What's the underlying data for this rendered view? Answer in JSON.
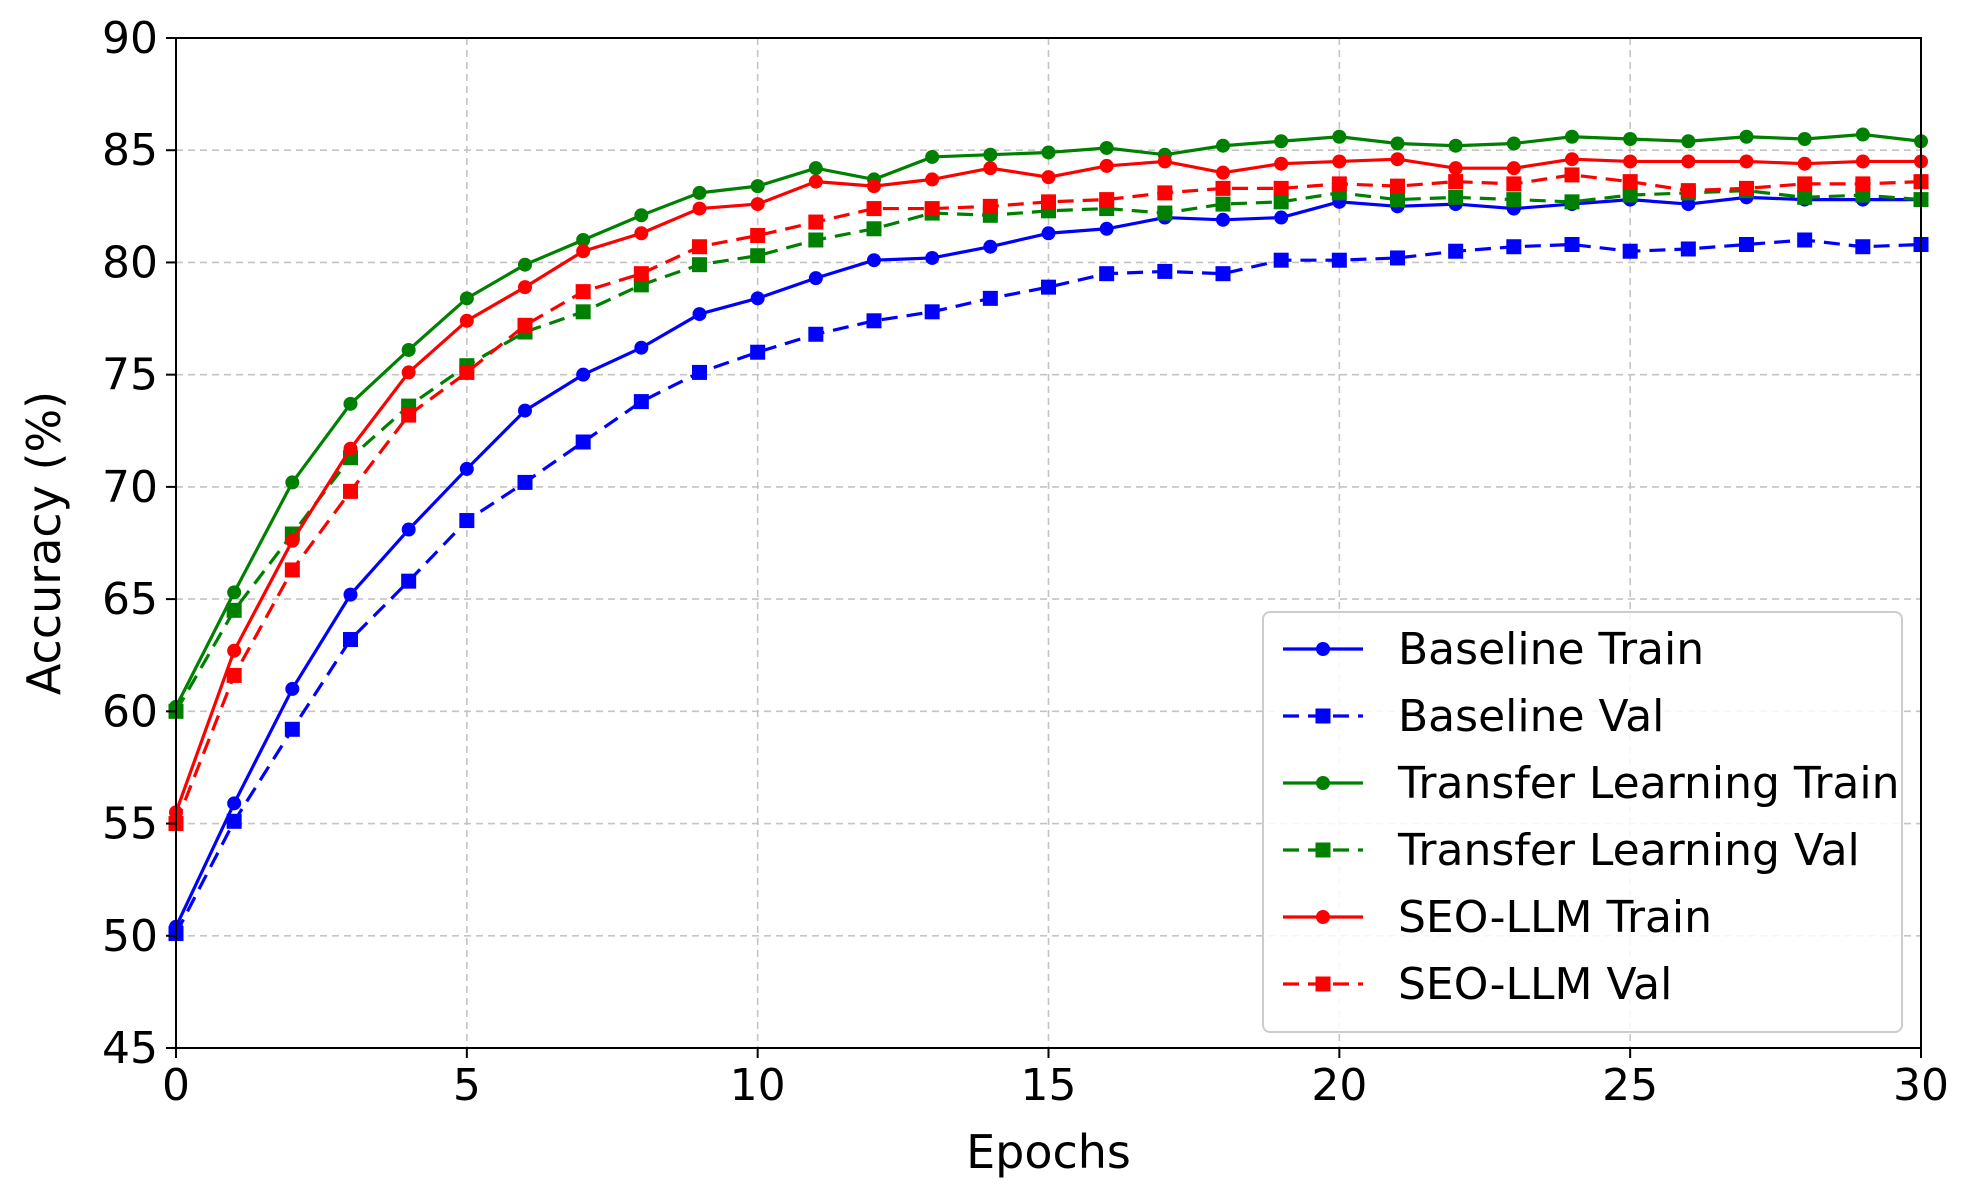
{
  "chart_data": {
    "type": "line",
    "xlabel": "Epochs",
    "ylabel": "Accuracy (%)",
    "xlim": [
      0,
      30
    ],
    "ylim": [
      45,
      90
    ],
    "xticks": [
      0,
      5,
      10,
      15,
      20,
      25,
      30
    ],
    "yticks": [
      45,
      50,
      55,
      60,
      65,
      70,
      75,
      80,
      85,
      90
    ],
    "grid": true,
    "legend_position": "lower-right",
    "x": [
      0,
      1,
      2,
      3,
      4,
      5,
      6,
      7,
      8,
      9,
      10,
      11,
      12,
      13,
      14,
      15,
      16,
      17,
      18,
      19,
      20,
      21,
      22,
      23,
      24,
      25,
      26,
      27,
      28,
      29,
      30
    ],
    "series": [
      {
        "name": "Baseline Train",
        "color": "#0000ff",
        "line_style": "solid",
        "marker": "circle",
        "values": [
          50.4,
          55.9,
          61.0,
          65.2,
          68.1,
          70.8,
          73.4,
          75.0,
          76.2,
          77.7,
          78.4,
          79.3,
          80.1,
          80.2,
          80.7,
          81.3,
          81.5,
          82.0,
          81.9,
          82.0,
          82.7,
          82.5,
          82.6,
          82.4,
          82.6,
          82.8,
          82.6,
          82.9,
          82.8,
          82.8,
          82.8
        ]
      },
      {
        "name": "Baseline Val",
        "color": "#0000ff",
        "line_style": "dashed",
        "marker": "square",
        "values": [
          50.1,
          55.1,
          59.2,
          63.2,
          65.8,
          68.5,
          70.2,
          72.0,
          73.8,
          75.1,
          76.0,
          76.8,
          77.4,
          77.8,
          78.4,
          78.9,
          79.5,
          79.6,
          79.5,
          80.1,
          80.1,
          80.2,
          80.5,
          80.7,
          80.8,
          80.5,
          80.6,
          80.8,
          81.0,
          80.7,
          80.8
        ]
      },
      {
        "name": "Transfer Learning Train",
        "color": "#008000",
        "line_style": "solid",
        "marker": "circle",
        "values": [
          60.2,
          65.3,
          70.2,
          73.7,
          76.1,
          78.4,
          79.9,
          81.0,
          82.1,
          83.1,
          83.4,
          84.2,
          83.7,
          84.7,
          84.8,
          84.9,
          85.1,
          84.8,
          85.2,
          85.4,
          85.6,
          85.3,
          85.2,
          85.3,
          85.6,
          85.5,
          85.4,
          85.6,
          85.5,
          85.7,
          85.4
        ]
      },
      {
        "name": "Transfer Learning Val",
        "color": "#008000",
        "line_style": "dashed",
        "marker": "square",
        "values": [
          60.0,
          64.5,
          67.9,
          71.3,
          73.6,
          75.4,
          76.9,
          77.8,
          79.0,
          79.9,
          80.3,
          81.0,
          81.5,
          82.2,
          82.1,
          82.3,
          82.4,
          82.2,
          82.6,
          82.7,
          83.1,
          82.8,
          82.9,
          82.8,
          82.7,
          83.0,
          83.1,
          83.2,
          82.9,
          83.0,
          82.8
        ]
      },
      {
        "name": "SEO-LLM Train",
        "color": "#ff0000",
        "line_style": "solid",
        "marker": "circle",
        "values": [
          55.5,
          62.7,
          67.6,
          71.7,
          75.1,
          77.4,
          78.9,
          80.5,
          81.3,
          82.4,
          82.6,
          83.6,
          83.4,
          83.7,
          84.2,
          83.8,
          84.3,
          84.5,
          84.0,
          84.4,
          84.5,
          84.6,
          84.2,
          84.2,
          84.6,
          84.5,
          84.5,
          84.5,
          84.4,
          84.5,
          84.5
        ]
      },
      {
        "name": "SEO-LLM Val",
        "color": "#ff0000",
        "line_style": "dashed",
        "marker": "square",
        "values": [
          55.0,
          61.6,
          66.3,
          69.8,
          73.2,
          75.1,
          77.2,
          78.7,
          79.5,
          80.7,
          81.2,
          81.8,
          82.4,
          82.4,
          82.5,
          82.7,
          82.8,
          83.1,
          83.3,
          83.3,
          83.5,
          83.4,
          83.6,
          83.5,
          83.9,
          83.6,
          83.2,
          83.3,
          83.5,
          83.5,
          83.6
        ]
      }
    ]
  }
}
